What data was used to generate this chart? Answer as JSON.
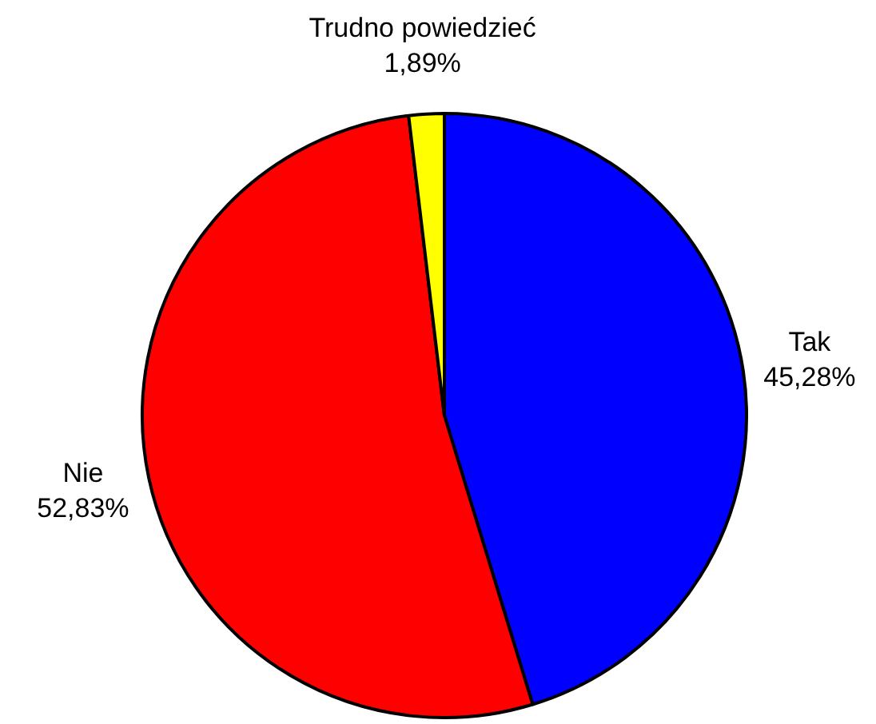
{
  "chart_data": {
    "type": "pie",
    "categories": [
      "Tak",
      "Nie",
      "Trudno powiedzieć"
    ],
    "values": [
      45.28,
      52.83,
      1.89
    ],
    "colors": [
      "#0000ff",
      "#ff0000",
      "#ffff00"
    ],
    "value_labels": [
      "45,28%",
      "52,83%",
      "1,89%"
    ],
    "legend": false
  }
}
